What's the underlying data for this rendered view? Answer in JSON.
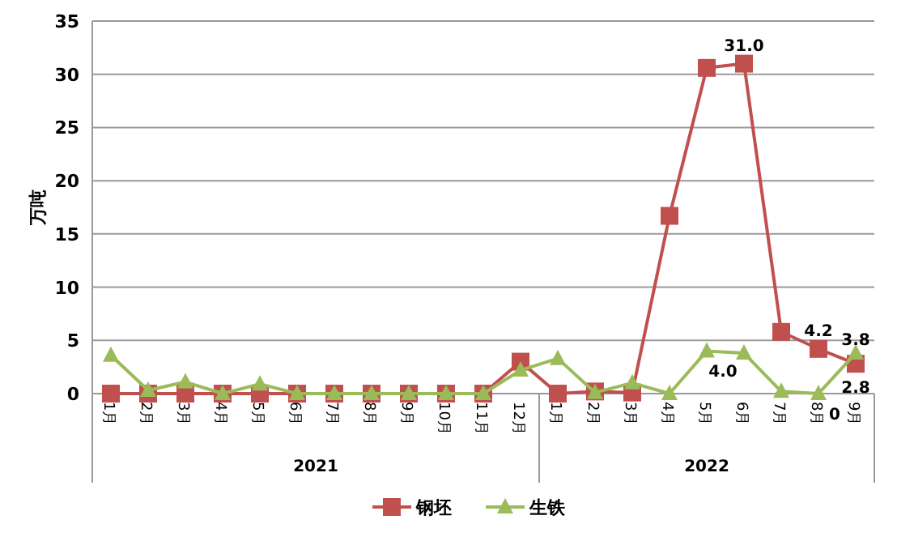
{
  "chart_data": {
    "type": "line",
    "ylabel": "万吨",
    "categories": [
      "1月",
      "2月",
      "3月",
      "4月",
      "5月",
      "6月",
      "7月",
      "8月",
      "9月",
      "10月",
      "11月",
      "12月",
      "1月",
      "2月",
      "3月",
      "4月",
      "5月",
      "6月",
      "7月",
      "8月",
      "9月"
    ],
    "annotations": [
      "2021",
      "2022"
    ],
    "ylim": [
      0,
      35
    ],
    "yticks": [
      0,
      5,
      10,
      15,
      20,
      25,
      30,
      35
    ],
    "grid": "y",
    "legend": "bottom",
    "line_style": "solid",
    "series": [
      {
        "name": "钢坯",
        "color": "#c0504d",
        "marker": "square",
        "values": [
          0,
          0,
          0,
          0,
          0,
          0,
          0,
          0,
          0,
          0,
          0,
          3.0,
          0,
          0.2,
          0.1,
          16.7,
          30.6,
          31.0,
          5.8,
          4.2,
          2.8
        ],
        "value_labels": [
          null,
          null,
          null,
          null,
          null,
          null,
          null,
          null,
          null,
          null,
          null,
          null,
          null,
          null,
          null,
          null,
          null,
          "31.0",
          null,
          "4.2",
          "2.8"
        ]
      },
      {
        "name": "生铁",
        "color": "#9bbb59",
        "marker": "triangle",
        "values": [
          3.6,
          0.3,
          1.1,
          0,
          0.9,
          0,
          0,
          0,
          0,
          0,
          0,
          2.2,
          3.3,
          0.1,
          1.0,
          0,
          4.0,
          3.8,
          0.2,
          0,
          3.8
        ],
        "value_labels": [
          null,
          null,
          null,
          null,
          null,
          null,
          null,
          null,
          null,
          null,
          null,
          null,
          null,
          null,
          null,
          null,
          "4.0",
          null,
          null,
          "0",
          "3.8"
        ]
      }
    ]
  }
}
